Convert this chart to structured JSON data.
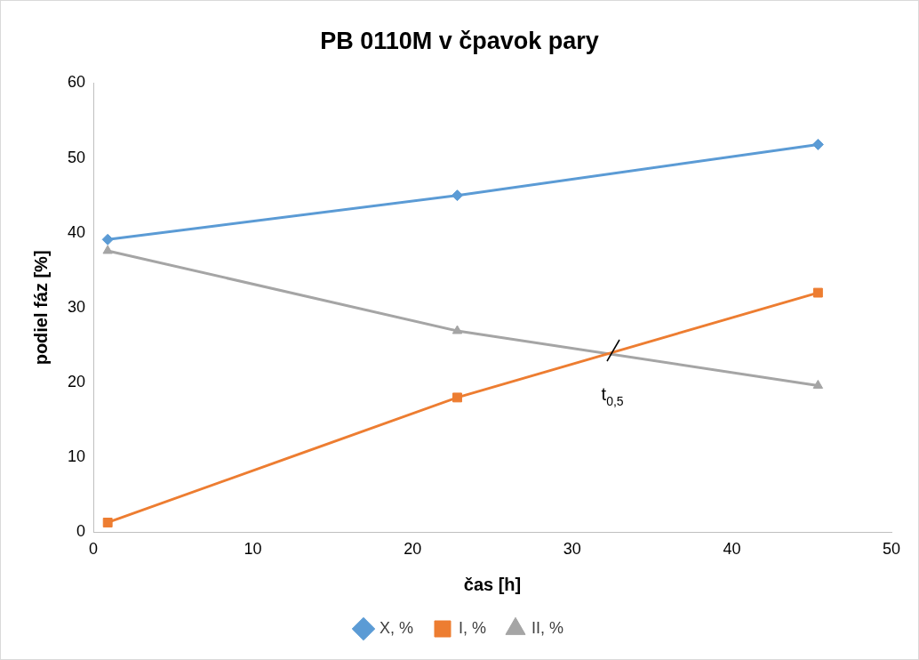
{
  "chart_data": {
    "type": "line",
    "title": "PB 0110M v čpavok pary",
    "xlabel": "čas [h]",
    "ylabel": "podiel fáz [%]",
    "x": [
      0.9,
      22.8,
      45.4
    ],
    "series": [
      {
        "name": "X, %",
        "color": "#5b9bd5",
        "marker": "diamond",
        "values": [
          39.1,
          45.0,
          51.8
        ]
      },
      {
        "name": "I, %",
        "color": "#ed7d31",
        "marker": "square",
        "values": [
          1.3,
          18.0,
          32.0
        ]
      },
      {
        "name": "II, %",
        "color": "#a5a5a5",
        "marker": "triangle",
        "values": [
          37.6,
          26.9,
          19.6
        ]
      }
    ],
    "xlim": [
      0,
      50
    ],
    "xticks": [
      0,
      10,
      20,
      30,
      40,
      50
    ],
    "ylim": [
      0,
      60
    ],
    "yticks": [
      0,
      10,
      20,
      30,
      40,
      50,
      60
    ],
    "grid": false,
    "legend": "bottom",
    "line_style": "solid",
    "annotations": [
      {
        "text": "t$_{0,5}$",
        "x": 32.3,
        "y": 23.8
      }
    ]
  }
}
